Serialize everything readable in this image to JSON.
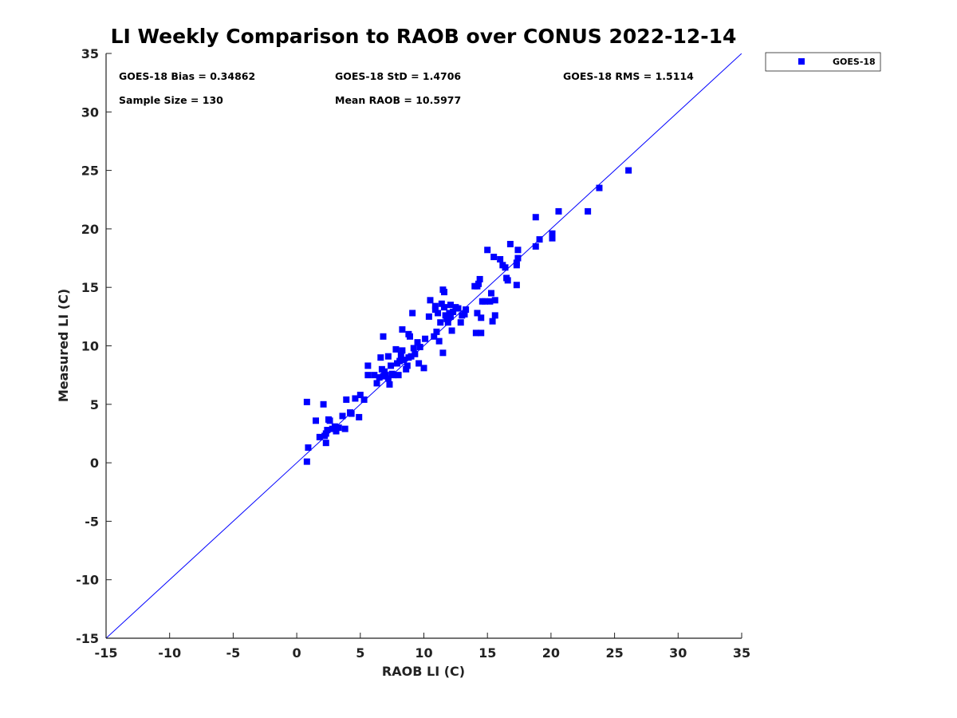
{
  "chart_data": {
    "type": "scatter",
    "title": "LI Weekly Comparison to RAOB over CONUS 2022-12-14",
    "xlabel": "RAOB LI (C)",
    "ylabel": "Measured LI (C)",
    "xlim": [
      -15,
      35
    ],
    "ylim": [
      -15,
      35
    ],
    "xticks": [
      "-15",
      "-10",
      "-5",
      "0",
      "5",
      "10",
      "15",
      "20",
      "25",
      "30",
      "35"
    ],
    "yticks": [
      "-15",
      "-10",
      "-5",
      "0",
      "5",
      "10",
      "15",
      "20",
      "25",
      "30",
      "35"
    ],
    "grid": false,
    "reference_line": "y = x",
    "legend": {
      "position": "outside-top-right",
      "entries": [
        "GOES-18"
      ]
    },
    "colors": {
      "series": "#0000ff",
      "reference_line": "#0000ff",
      "axis": "#222222"
    },
    "stats": {
      "bias": "GOES-18 Bias = 0.34862",
      "std": "GOES-18 StD = 1.4706",
      "rms": "GOES-18 RMS = 1.5114",
      "sample_size": "Sample Size = 130",
      "mean_raob": "Mean RAOB = 10.5977"
    },
    "series": [
      {
        "name": "GOES-18",
        "marker": "square",
        "x": [
          0.8,
          0.8,
          0.9,
          1.5,
          1.8,
          2.1,
          2.2,
          2.3,
          2.4,
          2.5,
          2.6,
          2.8,
          3.0,
          3.3,
          3.6,
          3.8,
          3.9,
          4.2,
          4.6,
          4.9,
          5.0,
          5.3,
          5.6,
          6.1,
          6.3,
          6.5,
          6.6,
          6.7,
          6.8,
          6.8,
          6.9,
          7.0,
          7.2,
          7.3,
          7.4,
          7.5,
          7.6,
          7.8,
          7.9,
          8.0,
          8.1,
          8.2,
          8.3,
          8.4,
          8.6,
          8.7,
          8.8,
          8.8,
          8.9,
          9.0,
          9.1,
          9.2,
          9.3,
          9.5,
          9.6,
          9.7,
          10.0,
          10.1,
          10.4,
          10.5,
          10.8,
          10.9,
          11.0,
          11.1,
          11.2,
          11.3,
          11.4,
          11.5,
          11.5,
          11.6,
          11.6,
          11.7,
          11.8,
          11.9,
          12.0,
          12.1,
          12.2,
          12.3,
          12.5,
          12.7,
          12.9,
          13.0,
          13.2,
          13.3,
          14.0,
          14.1,
          14.2,
          14.3,
          14.4,
          14.5,
          14.5,
          14.6,
          14.8,
          15.0,
          15.2,
          15.3,
          15.4,
          15.5,
          15.6,
          15.6,
          16.0,
          16.2,
          16.4,
          16.5,
          16.6,
          16.8,
          17.3,
          17.3,
          17.3,
          17.4,
          17.4,
          18.8,
          18.8,
          19.1,
          20.1,
          20.1,
          20.6,
          22.9,
          23.8,
          26.1,
          2.3,
          4.3,
          5.6,
          7.2,
          8.3,
          10.9,
          12.1,
          14.2,
          11.6,
          3.1
        ],
        "y": [
          5.2,
          0.1,
          1.3,
          3.6,
          2.2,
          5.0,
          2.3,
          1.7,
          2.8,
          3.7,
          3.6,
          2.9,
          3.1,
          3.0,
          4.0,
          2.9,
          5.4,
          4.3,
          5.5,
          3.9,
          5.8,
          5.4,
          8.3,
          7.5,
          6.8,
          7.3,
          9.0,
          8.0,
          10.8,
          7.4,
          7.8,
          7.5,
          9.1,
          6.7,
          8.3,
          7.6,
          7.5,
          9.7,
          8.5,
          7.5,
          8.7,
          9.2,
          11.4,
          8.8,
          8.0,
          8.3,
          9.0,
          11.0,
          10.8,
          9.1,
          12.8,
          9.8,
          9.3,
          10.3,
          8.5,
          9.9,
          8.1,
          10.6,
          12.5,
          13.9,
          10.8,
          13.1,
          11.2,
          12.8,
          10.4,
          12.0,
          13.6,
          14.8,
          9.4,
          13.3,
          14.6,
          12.6,
          12.3,
          12.0,
          12.8,
          13.5,
          11.3,
          12.9,
          13.3,
          13.2,
          12.0,
          12.6,
          12.7,
          13.1,
          15.1,
          11.1,
          12.8,
          15.3,
          15.7,
          11.1,
          12.4,
          13.8,
          13.8,
          18.2,
          13.8,
          14.5,
          12.1,
          17.6,
          12.6,
          13.9,
          17.4,
          16.9,
          16.7,
          15.8,
          15.6,
          18.7,
          15.2,
          16.9,
          17.1,
          17.5,
          18.2,
          18.5,
          21.0,
          19.1,
          19.2,
          19.6,
          21.5,
          21.5,
          23.5,
          25.0,
          2.5,
          4.2,
          7.5,
          7.2,
          9.6,
          13.4,
          12.5,
          15.1,
          14.6,
          2.7
        ]
      }
    ]
  }
}
